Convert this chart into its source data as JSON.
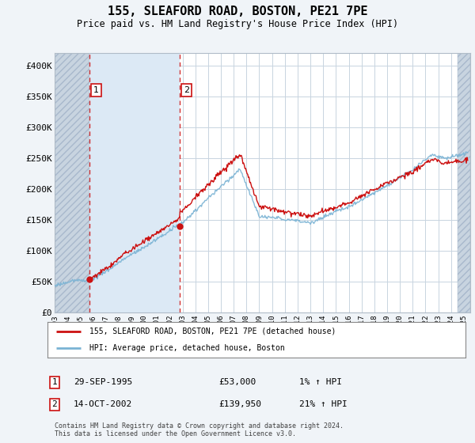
{
  "title": "155, SLEAFORD ROAD, BOSTON, PE21 7PE",
  "subtitle": "Price paid vs. HM Land Registry's House Price Index (HPI)",
  "legend_line1": "155, SLEAFORD ROAD, BOSTON, PE21 7PE (detached house)",
  "legend_line2": "HPI: Average price, detached house, Boston",
  "footnote": "Contains HM Land Registry data © Crown copyright and database right 2024.\nThis data is licensed under the Open Government Licence v3.0.",
  "sale1_date": "29-SEP-1995",
  "sale1_price": "£53,000",
  "sale1_hpi": "1% ↑ HPI",
  "sale2_date": "14-OCT-2002",
  "sale2_price": "£139,950",
  "sale2_hpi": "21% ↑ HPI",
  "sale1_year": 1995.75,
  "sale2_year": 2002.79,
  "sale1_value": 53000,
  "sale2_value": 139950,
  "hpi_color": "#7ab3d4",
  "price_color": "#cc1111",
  "shade_color": "#dce9f5",
  "hatch_color": "#c8d4e0",
  "background_color": "#f0f4f8",
  "plot_bg_color": "#ffffff",
  "ylim": [
    0,
    420000
  ],
  "xlim_start": 1993.0,
  "xlim_end": 2025.5,
  "yticks": [
    0,
    50000,
    100000,
    150000,
    200000,
    250000,
    300000,
    350000,
    400000
  ],
  "ytick_labels": [
    "£0",
    "£50K",
    "£100K",
    "£150K",
    "£200K",
    "£250K",
    "£300K",
    "£350K",
    "£400K"
  ],
  "xtick_years": [
    1993,
    1994,
    1995,
    1996,
    1997,
    1998,
    1999,
    2000,
    2001,
    2002,
    2003,
    2004,
    2005,
    2006,
    2007,
    2008,
    2009,
    2010,
    2011,
    2012,
    2013,
    2014,
    2015,
    2016,
    2017,
    2018,
    2019,
    2020,
    2021,
    2022,
    2023,
    2024,
    2025
  ]
}
